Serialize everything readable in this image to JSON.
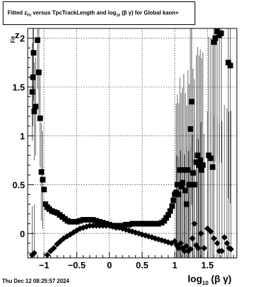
{
  "title": {
    "pre": "Fitted  z",
    "sub1": "Fit",
    "mid": "  versus TpcTrackLength and log",
    "sub2": "10",
    "post": " (β  γ)  for Global kaon+"
  },
  "timestamp": "Thu Dec 12 08:25:57 2024",
  "chart_data": {
    "type": "scatter",
    "xlabel": {
      "main": "log",
      "sub": "10",
      "rest": "(β γ)"
    },
    "ylabel": {
      "main": "z",
      "sub": "Fit"
    },
    "xlim": [
      -1.25,
      1.95
    ],
    "ylim": [
      -0.25,
      2.1
    ],
    "x_ticks": [
      "−1",
      "−0.5",
      "0",
      "0.5",
      "1",
      "1.5"
    ],
    "x_tick_values": [
      -1,
      -0.5,
      0,
      0.5,
      1,
      1.5
    ],
    "y_ticks": [
      "0",
      "0.5",
      "1",
      "1.5",
      "2"
    ],
    "y_tick_values": [
      0,
      0.5,
      1,
      1.5,
      2
    ],
    "grid": true,
    "series": [
      {
        "marker": "square",
        "color": "#000000",
        "points": [
          [
            -1.18,
            1.45
          ],
          [
            -1.17,
            1.6
          ],
          [
            -1.16,
            1.85
          ],
          [
            -1.15,
            1.25
          ],
          [
            -1.13,
            1.3
          ],
          [
            -1.1,
            1.98
          ],
          [
            -1.08,
            1.65
          ],
          [
            -1.06,
            1.18
          ],
          [
            -1.04,
            0.63
          ],
          [
            -1.02,
            0.55
          ],
          [
            -1.0,
            0.45
          ],
          [
            -0.98,
            0.3
          ],
          [
            -0.95,
            0.27
          ],
          [
            -0.92,
            0.25
          ],
          [
            -0.88,
            0.23
          ],
          [
            -0.84,
            0.22
          ],
          [
            -0.8,
            0.21
          ],
          [
            -0.76,
            0.19
          ],
          [
            -0.72,
            0.17
          ],
          [
            -0.68,
            0.15
          ],
          [
            -0.64,
            0.13
          ],
          [
            -0.6,
            0.12
          ],
          [
            -0.55,
            0.12
          ],
          [
            -0.5,
            0.12
          ],
          [
            -0.45,
            0.13
          ],
          [
            -0.4,
            0.14
          ],
          [
            -0.35,
            0.14
          ],
          [
            -0.3,
            0.14
          ],
          [
            -0.25,
            0.14
          ],
          [
            -0.2,
            0.13
          ],
          [
            -0.15,
            0.12
          ],
          [
            -0.1,
            0.11
          ],
          [
            -0.05,
            0.1
          ],
          [
            0.0,
            0.09
          ],
          [
            0.05,
            0.08
          ],
          [
            0.1,
            0.08
          ],
          [
            0.15,
            0.08
          ],
          [
            0.2,
            0.08
          ],
          [
            0.25,
            0.09
          ],
          [
            0.3,
            0.09
          ],
          [
            0.35,
            0.1
          ],
          [
            0.4,
            0.1
          ],
          [
            0.45,
            0.1
          ],
          [
            0.5,
            0.1
          ],
          [
            0.55,
            0.1
          ],
          [
            0.6,
            0.1
          ],
          [
            0.65,
            0.1
          ],
          [
            0.7,
            0.1
          ],
          [
            0.75,
            0.1
          ],
          [
            0.8,
            0.11
          ],
          [
            0.84,
            0.13
          ],
          [
            0.87,
            0.16
          ],
          [
            0.9,
            0.19
          ],
          [
            0.93,
            0.23
          ],
          [
            0.96,
            0.28
          ],
          [
            0.98,
            0.34
          ],
          [
            1.0,
            0.4
          ],
          [
            1.02,
            0.42
          ],
          [
            1.04,
            0.5
          ],
          [
            1.06,
            0.4
          ],
          [
            1.08,
            0.65
          ],
          [
            1.1,
            0.48
          ],
          [
            1.12,
            0.52
          ],
          [
            1.14,
            0.65
          ],
          [
            1.16,
            0.44
          ],
          [
            1.18,
            0.3
          ],
          [
            1.2,
            0.65
          ],
          [
            1.22,
            0.5
          ],
          [
            1.24,
            1.07
          ],
          [
            1.26,
            1.35
          ],
          [
            1.28,
            0.62
          ],
          [
            1.3,
            0.5
          ],
          [
            1.33,
            0.73
          ],
          [
            1.35,
            0.8
          ],
          [
            1.37,
            0.7
          ],
          [
            1.39,
            0.75
          ],
          [
            1.41,
            0.65
          ],
          [
            1.43,
            0.7
          ],
          [
            1.52,
            0.8
          ],
          [
            1.55,
            0.77
          ],
          [
            1.58,
            0.68
          ],
          [
            1.62,
            2.0
          ],
          [
            1.65,
            2.07
          ],
          [
            1.68,
            2.03
          ],
          [
            1.71,
            2.05
          ],
          [
            1.6,
            1.96
          ],
          [
            1.82,
            1.75
          ],
          [
            1.85,
            1.72
          ]
        ]
      },
      {
        "marker": "diamond",
        "color": "#000000",
        "points": [
          [
            -1.18,
            -0.22
          ],
          [
            -1.15,
            -0.2
          ],
          [
            -0.95,
            -0.22
          ],
          [
            -0.9,
            -0.18
          ],
          [
            -0.85,
            -0.15
          ],
          [
            -0.8,
            -0.11
          ],
          [
            -0.75,
            -0.08
          ],
          [
            -0.7,
            -0.05
          ],
          [
            -0.65,
            -0.03
          ],
          [
            -0.6,
            -0.01
          ],
          [
            -0.55,
            0.01
          ],
          [
            -0.5,
            0.03
          ],
          [
            -0.45,
            0.05
          ],
          [
            -0.4,
            0.06
          ],
          [
            -0.35,
            0.07
          ],
          [
            -0.3,
            0.08
          ],
          [
            -0.25,
            0.08
          ],
          [
            -0.2,
            0.08
          ],
          [
            -0.15,
            0.08
          ],
          [
            -0.1,
            0.08
          ],
          [
            -0.05,
            0.08
          ],
          [
            0.0,
            0.08
          ],
          [
            0.05,
            0.07
          ],
          [
            0.1,
            0.06
          ],
          [
            0.15,
            0.06
          ],
          [
            0.2,
            0.05
          ],
          [
            0.25,
            0.04
          ],
          [
            0.3,
            0.03
          ],
          [
            0.35,
            0.02
          ],
          [
            0.4,
            0.01
          ],
          [
            0.45,
            0.0
          ],
          [
            0.5,
            -0.01
          ],
          [
            0.55,
            -0.02
          ],
          [
            0.6,
            -0.03
          ],
          [
            0.65,
            -0.04
          ],
          [
            0.7,
            -0.05
          ],
          [
            0.75,
            -0.06
          ],
          [
            0.8,
            -0.07
          ],
          [
            0.85,
            -0.08
          ],
          [
            0.9,
            -0.09
          ],
          [
            0.95,
            -0.1
          ],
          [
            1.0,
            -0.08
          ],
          [
            1.03,
            -0.12
          ],
          [
            1.06,
            -0.15
          ],
          [
            1.09,
            -0.1
          ],
          [
            1.12,
            -0.15
          ],
          [
            1.15,
            -0.18
          ],
          [
            1.18,
            -0.13
          ],
          [
            1.21,
            -0.18
          ],
          [
            1.24,
            -0.16
          ],
          [
            1.27,
            -0.05
          ],
          [
            1.3,
            0.1
          ],
          [
            1.33,
            -0.12
          ],
          [
            1.36,
            -0.15
          ],
          [
            1.4,
            0.0
          ],
          [
            1.45,
            -0.15
          ],
          [
            1.5,
            0.05
          ],
          [
            1.55,
            0.02
          ],
          [
            1.6,
            -0.05
          ],
          [
            1.65,
            -0.1
          ],
          [
            1.68,
            -0.18
          ],
          [
            1.72,
            -0.18
          ],
          [
            1.76,
            -0.04
          ],
          [
            1.8,
            -0.1
          ],
          [
            1.83,
            -0.15
          ],
          [
            1.86,
            -0.16
          ]
        ]
      }
    ]
  }
}
